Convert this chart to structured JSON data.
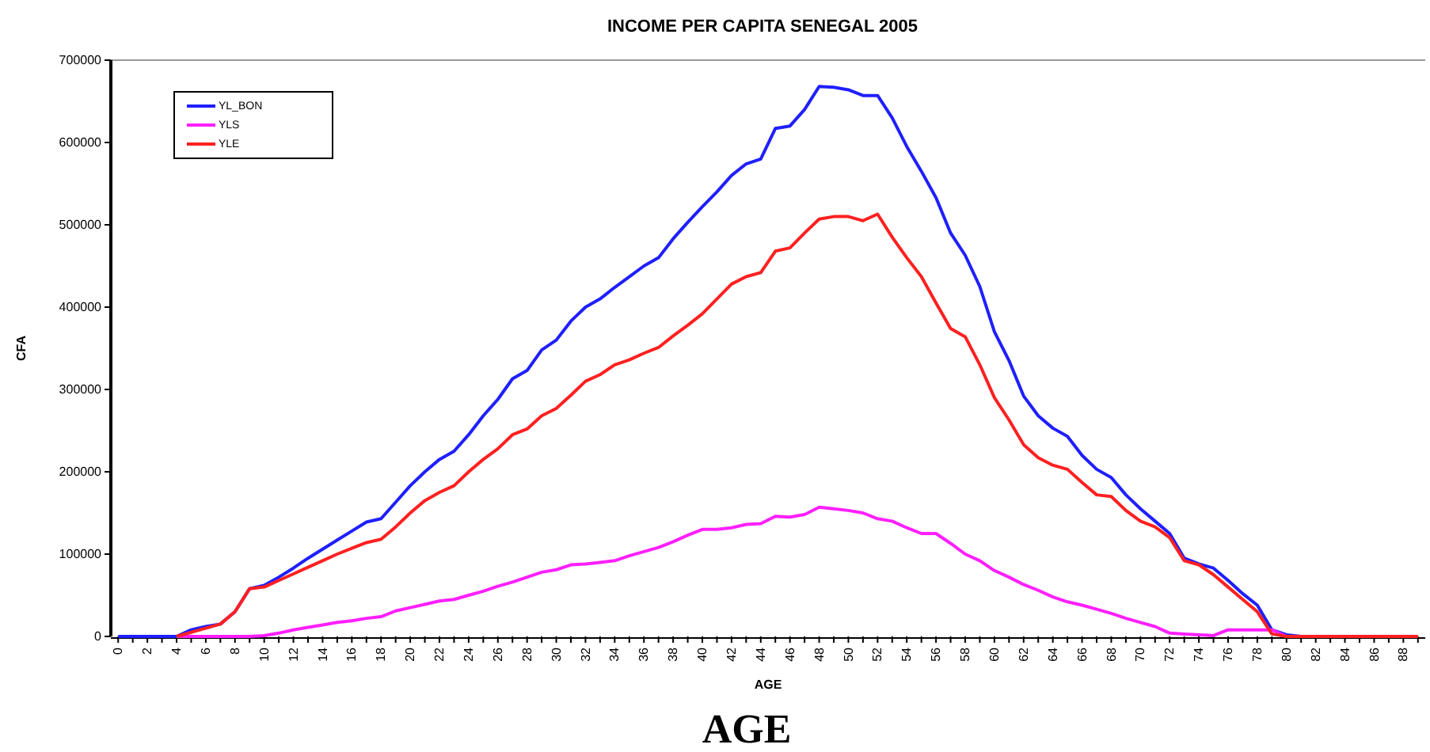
{
  "chart_data": {
    "type": "line",
    "title": "INCOME PER CAPITA SENEGAL 2005",
    "xlabel": "AGE",
    "ylabel": "CFA",
    "annotations": [
      "AGE"
    ],
    "categories": [
      "0",
      null,
      "2",
      null,
      "4",
      null,
      "6",
      null,
      "8",
      null,
      "10",
      null,
      "12",
      null,
      "14",
      null,
      "16",
      null,
      "18",
      null,
      "20",
      null,
      "22",
      null,
      "24",
      null,
      "26",
      null,
      "28",
      null,
      "30",
      null,
      "32",
      null,
      "34",
      null,
      "36",
      null,
      "38",
      null,
      "40",
      null,
      "42",
      null,
      "44",
      null,
      "46",
      null,
      "48",
      null,
      "50",
      null,
      "52",
      null,
      "54",
      null,
      "56",
      null,
      "58",
      null,
      "60",
      null,
      "62",
      null,
      "64",
      null,
      "66",
      null,
      "68",
      null,
      "70",
      null,
      "72",
      null,
      "74",
      null,
      "76",
      null,
      "78",
      null,
      "80",
      null,
      "82",
      null,
      "84",
      null,
      "86",
      null,
      "88",
      null
    ],
    "ylim": [
      0,
      700000
    ],
    "yticks": [
      0,
      100000,
      200000,
      300000,
      400000,
      500000,
      600000,
      700000
    ],
    "grid": false,
    "legend": "top left",
    "marker": "none",
    "line_style": "solid",
    "series": [
      {
        "name": "YL_BON",
        "color": "#1f1fff",
        "values": [
          0,
          0,
          0,
          0,
          0,
          8000,
          12000,
          15000,
          30000,
          58000,
          62000,
          72000,
          83000,
          95000,
          106000,
          117000,
          128000,
          139000,
          143000,
          163000,
          183000,
          200000,
          215000,
          225000,
          245000,
          268000,
          288000,
          313000,
          323000,
          348000,
          360000,
          383000,
          400000,
          410000,
          424000,
          437000,
          450000,
          460000,
          483000,
          503000,
          522000,
          540000,
          560000,
          574000,
          580000,
          617000,
          620000,
          640000,
          668000,
          667000,
          664000,
          657000,
          657000,
          630000,
          595000,
          565000,
          533000,
          490000,
          463000,
          425000,
          370000,
          335000,
          292000,
          268000,
          253000,
          243000,
          220000,
          203000,
          193000,
          172000,
          155000,
          140000,
          125000,
          95000,
          88000,
          83000,
          68000,
          52000,
          38000,
          8000,
          2000,
          0,
          null,
          null,
          null,
          null,
          null,
          null,
          null,
          null
        ]
      },
      {
        "name": "YLS",
        "color": "#ff1fff",
        "values": [
          null,
          null,
          null,
          null,
          0,
          0,
          0,
          0,
          0,
          0,
          1000,
          4000,
          8000,
          11000,
          14000,
          17000,
          19000,
          22000,
          24000,
          31000,
          35000,
          39000,
          43000,
          45000,
          50000,
          55000,
          61000,
          66000,
          72000,
          78000,
          81000,
          87000,
          88000,
          90000,
          92000,
          98000,
          103000,
          108000,
          115000,
          123000,
          130000,
          130000,
          132000,
          136000,
          137000,
          146000,
          145000,
          148000,
          157000,
          155000,
          153000,
          150000,
          143000,
          140000,
          132000,
          125000,
          125000,
          113000,
          100000,
          92000,
          80000,
          72000,
          63000,
          56000,
          48000,
          42000,
          38000,
          33000,
          28000,
          22000,
          17000,
          12000,
          4000,
          3000,
          2000,
          1000,
          8000,
          8000,
          8000,
          8000,
          0,
          null,
          null,
          null,
          null,
          null,
          null,
          null,
          null,
          null
        ]
      },
      {
        "name": "YLE",
        "color": "#ff2020",
        "values": [
          null,
          null,
          null,
          null,
          0,
          5000,
          10000,
          15000,
          30000,
          58000,
          60000,
          68000,
          76000,
          84000,
          92000,
          100000,
          107000,
          114000,
          118000,
          133000,
          150000,
          165000,
          175000,
          183000,
          200000,
          215000,
          228000,
          245000,
          252000,
          268000,
          277000,
          293000,
          310000,
          318000,
          330000,
          336000,
          344000,
          351000,
          365000,
          378000,
          392000,
          410000,
          428000,
          437000,
          442000,
          468000,
          472000,
          490000,
          507000,
          510000,
          510000,
          505000,
          513000,
          485000,
          460000,
          437000,
          405000,
          374000,
          364000,
          330000,
          290000,
          263000,
          233000,
          217000,
          208000,
          203000,
          187000,
          172000,
          170000,
          153000,
          140000,
          133000,
          120000,
          92000,
          87000,
          75000,
          60000,
          45000,
          30000,
          3000,
          0,
          0,
          0,
          0,
          0,
          0,
          0,
          0,
          0,
          0
        ]
      }
    ]
  }
}
